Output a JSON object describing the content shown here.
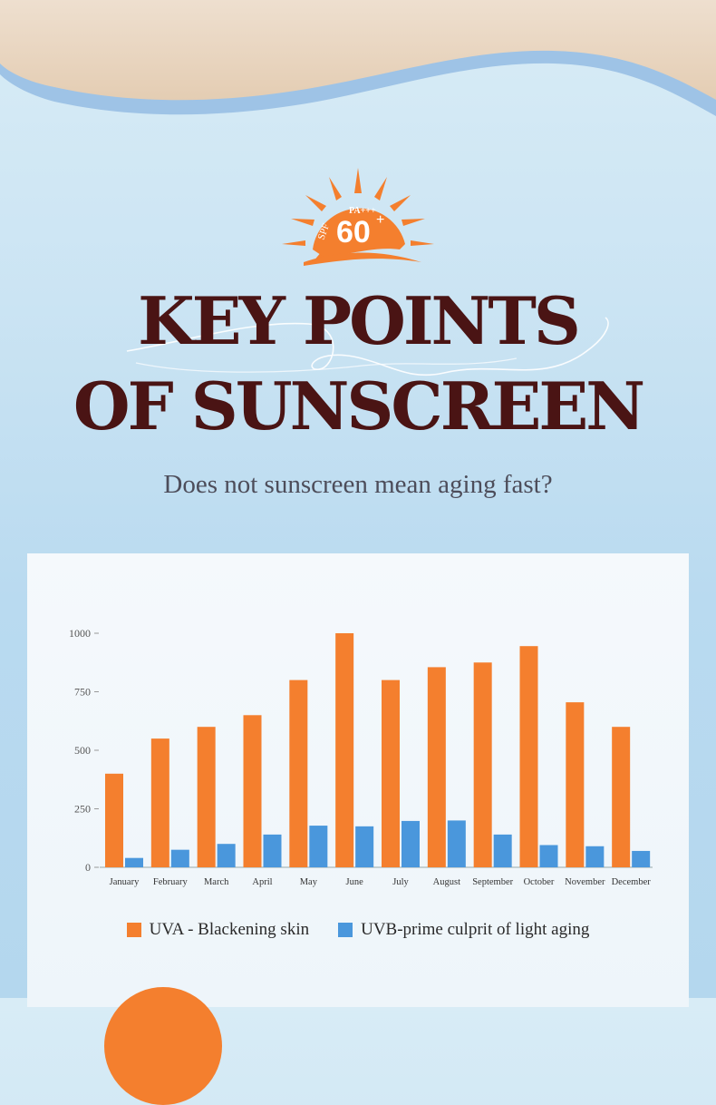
{
  "logo": {
    "top_text": "PA+++",
    "side_text": "SPF",
    "value": "60",
    "sup": "+"
  },
  "title": {
    "line1": "KEY POINTS",
    "line2": "OF SUNSCREEN"
  },
  "subtitle": "Does not sunscreen mean aging fast?",
  "colors": {
    "uva": "#f47f2e",
    "uvb": "#4a97dc",
    "title": "#4a1414",
    "wave": "#a3c7e8",
    "sand": "#e8d4bd"
  },
  "chart_data": {
    "type": "bar",
    "categories": [
      "January",
      "February",
      "March",
      "April",
      "May",
      "June",
      "July",
      "August",
      "September",
      "October",
      "November",
      "December"
    ],
    "series": [
      {
        "name": "UVA - Blackening skin",
        "values": [
          400,
          550,
          600,
          650,
          800,
          1000,
          800,
          855,
          875,
          945,
          705,
          600
        ]
      },
      {
        "name": "UVB-prime culprit of light aging",
        "values": [
          40,
          75,
          100,
          140,
          178,
          175,
          198,
          200,
          140,
          95,
          90,
          70
        ]
      }
    ],
    "yticks": [
      "0",
      "250",
      "500",
      "750",
      "1000"
    ],
    "ylim": [
      0,
      1000
    ],
    "legend": "bottom-center",
    "grid": false
  }
}
